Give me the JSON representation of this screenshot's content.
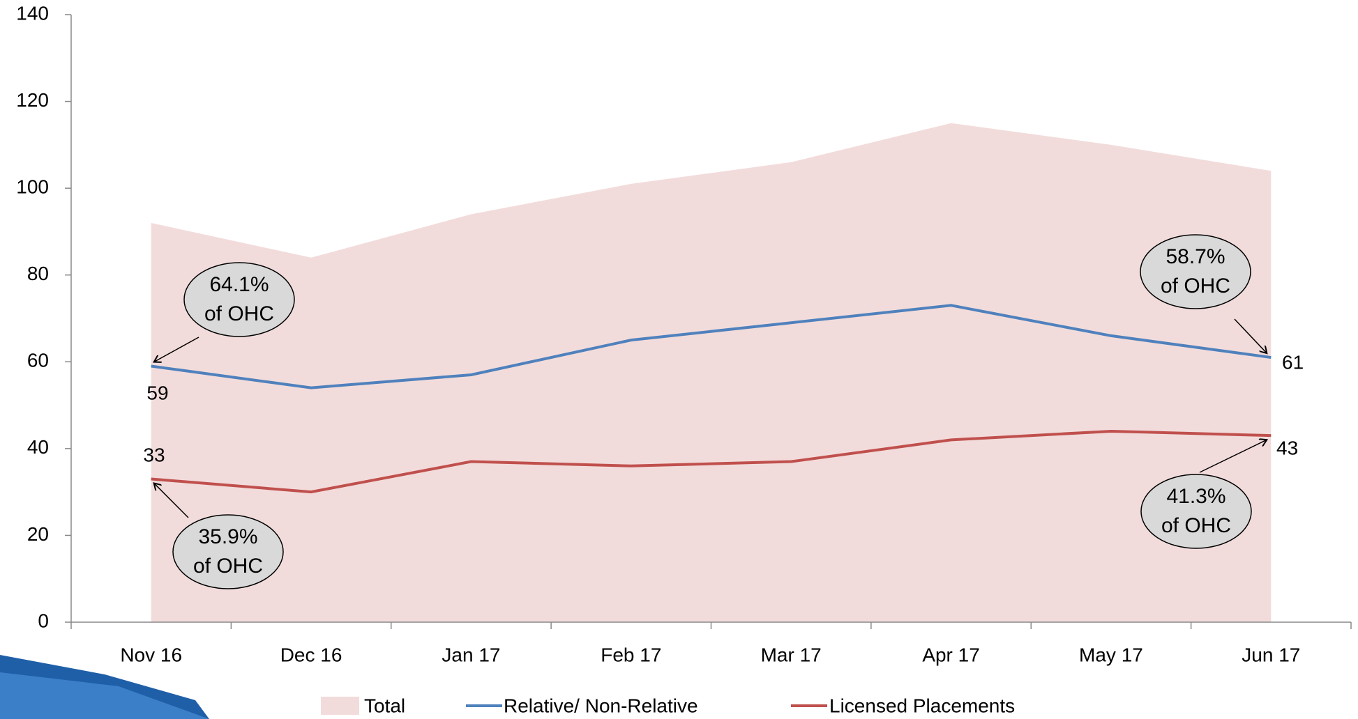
{
  "chart_data": {
    "type": "line",
    "categories": [
      "Nov 16",
      "Dec 16",
      "Jan 17",
      "Feb 17",
      "Mar 17",
      "Apr 17",
      "May 17",
      "Jun 17"
    ],
    "series": [
      {
        "name": "Total",
        "color": "#f2dcdb",
        "style": "area",
        "values": [
          92,
          84,
          94,
          101,
          106,
          115,
          110,
          104
        ]
      },
      {
        "name": "Relative/ Non-Relative",
        "color": "#4f81bd",
        "style": "line",
        "values": [
          59,
          54,
          57,
          65,
          69,
          73,
          66,
          61
        ]
      },
      {
        "name": "Licensed Placements",
        "color": "#c0504d",
        "style": "line",
        "values": [
          33,
          30,
          37,
          36,
          37,
          42,
          44,
          43
        ]
      }
    ],
    "ylim": [
      0,
      140
    ],
    "yticks": [
      0,
      20,
      40,
      60,
      80,
      100,
      120,
      140
    ],
    "grid": false,
    "legend": "bottom",
    "annotations": [
      [
        "64.1%",
        "of OHC"
      ],
      [
        "58.7%",
        "of OHC"
      ],
      [
        "35.9%",
        "of OHC"
      ],
      [
        "41.3%",
        "of OHC"
      ]
    ]
  }
}
